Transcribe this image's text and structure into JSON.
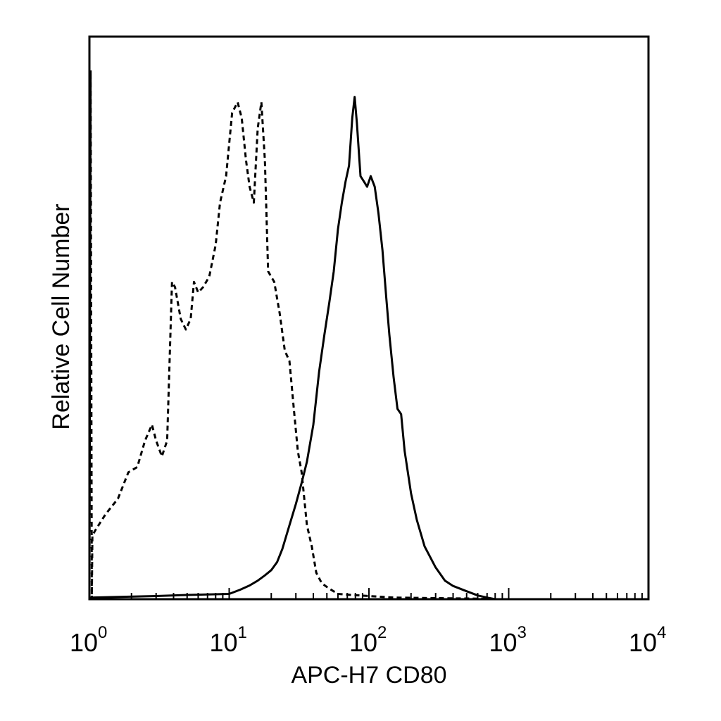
{
  "chart_data": {
    "type": "line",
    "title": "",
    "xlabel": "APC-H7 CD80",
    "ylabel": "Relative Cell Number",
    "xscale": "log",
    "xlim": [
      1,
      10000
    ],
    "ylim": [
      0,
      100
    ],
    "grid": false,
    "legend": "none",
    "x_tick_labels": [
      {
        "value": 1,
        "base": "10",
        "exp": "0"
      },
      {
        "value": 10,
        "base": "10",
        "exp": "1"
      },
      {
        "value": 100,
        "base": "10",
        "exp": "2"
      },
      {
        "value": 1000,
        "base": "10",
        "exp": "3"
      },
      {
        "value": 10000,
        "base": "10",
        "exp": "4"
      }
    ],
    "series": [
      {
        "style": "dashed",
        "color": "#000000",
        "points": [
          [
            1.0,
            0
          ],
          [
            1.02,
            100
          ],
          [
            1.04,
            0
          ],
          [
            1.05,
            12
          ],
          [
            1.1,
            13
          ],
          [
            1.3,
            16
          ],
          [
            1.6,
            19
          ],
          [
            1.9,
            24
          ],
          [
            2.2,
            25
          ],
          [
            2.5,
            30
          ],
          [
            2.8,
            33
          ],
          [
            3.0,
            30
          ],
          [
            3.3,
            27
          ],
          [
            3.6,
            30
          ],
          [
            3.9,
            60
          ],
          [
            4.1,
            59
          ],
          [
            4.5,
            53
          ],
          [
            4.9,
            51
          ],
          [
            5.3,
            53
          ],
          [
            5.6,
            60
          ],
          [
            6.0,
            58
          ],
          [
            6.5,
            59
          ],
          [
            7.2,
            61
          ],
          [
            8.0,
            67
          ],
          [
            8.6,
            75
          ],
          [
            9.5,
            80
          ],
          [
            10.5,
            92
          ],
          [
            11.5,
            94
          ],
          [
            12.3,
            91
          ],
          [
            13.2,
            83
          ],
          [
            14.0,
            78
          ],
          [
            15.0,
            75
          ],
          [
            16.0,
            89
          ],
          [
            17.0,
            94
          ],
          [
            18.0,
            83
          ],
          [
            19.0,
            62
          ],
          [
            21.0,
            60
          ],
          [
            23.0,
            54
          ],
          [
            25.0,
            47
          ],
          [
            27.0,
            45
          ],
          [
            29.0,
            36
          ],
          [
            31.0,
            28
          ],
          [
            33.0,
            24
          ],
          [
            36.0,
            14
          ],
          [
            39.0,
            10
          ],
          [
            42.0,
            5
          ],
          [
            46.0,
            3
          ],
          [
            52.0,
            2
          ],
          [
            60.0,
            1
          ],
          [
            75.0,
            0.8
          ],
          [
            100.0,
            0.6
          ],
          [
            150.0,
            0.3
          ],
          [
            300.0,
            0.2
          ],
          [
            600.0,
            0.1
          ],
          [
            800.0,
            0
          ]
        ]
      },
      {
        "style": "solid",
        "color": "#000000",
        "points": [
          [
            1.0,
            0.3
          ],
          [
            3.0,
            0.6
          ],
          [
            5.0,
            0.8
          ],
          [
            10.0,
            1.0
          ],
          [
            12.0,
            1.8
          ],
          [
            14.0,
            2.6
          ],
          [
            16.0,
            3.5
          ],
          [
            18.0,
            4.5
          ],
          [
            20.0,
            5.5
          ],
          [
            22.0,
            7.0
          ],
          [
            24.0,
            9.5
          ],
          [
            27.0,
            14.0
          ],
          [
            30.0,
            18.0
          ],
          [
            33.0,
            22.0
          ],
          [
            36.0,
            26.0
          ],
          [
            40.0,
            33.0
          ],
          [
            44.0,
            43.0
          ],
          [
            48.0,
            50.0
          ],
          [
            52.0,
            56.0
          ],
          [
            56.0,
            62.0
          ],
          [
            60.0,
            70.0
          ],
          [
            64.0,
            75.0
          ],
          [
            68.0,
            79.0
          ],
          [
            72.0,
            82.0
          ],
          [
            76.0,
            91.0
          ],
          [
            79.0,
            95.0
          ],
          [
            82.0,
            90.0
          ],
          [
            87.0,
            80.0
          ],
          [
            92.0,
            79.0
          ],
          [
            97.0,
            78.0
          ],
          [
            103.0,
            80.0
          ],
          [
            110.0,
            78.0
          ],
          [
            117.0,
            73.0
          ],
          [
            125.0,
            66.0
          ],
          [
            133.0,
            57.0
          ],
          [
            140.0,
            50.0
          ],
          [
            150.0,
            42.0
          ],
          [
            160.0,
            36.0
          ],
          [
            170.0,
            35.0
          ],
          [
            180.0,
            28.0
          ],
          [
            200.0,
            20.0
          ],
          [
            220.0,
            15.0
          ],
          [
            250.0,
            10.0
          ],
          [
            300.0,
            6.0
          ],
          [
            350.0,
            3.5
          ],
          [
            400.0,
            2.5
          ],
          [
            500.0,
            1.5
          ],
          [
            600.0,
            0.7
          ],
          [
            700.0,
            0.3
          ],
          [
            800.0,
            0
          ]
        ]
      }
    ]
  }
}
